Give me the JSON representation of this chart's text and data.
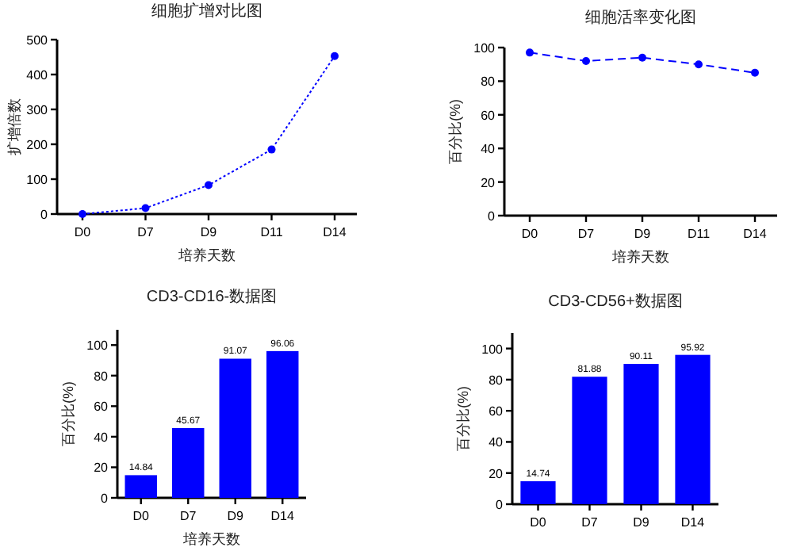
{
  "chart_data": [
    {
      "type": "line",
      "title": "细胞扩增对比图",
      "xlabel": "培养天数",
      "ylabel": "扩增倍数",
      "categories": [
        "D0",
        "D7",
        "D9",
        "D11",
        "D14"
      ],
      "series": [
        {
          "color": "#0000ff",
          "values": [
            0,
            17,
            83,
            185,
            453
          ]
        }
      ],
      "ylim": [
        0,
        500
      ],
      "yticks": [
        0,
        100,
        200,
        300,
        400,
        500
      ],
      "marker": "circle",
      "line_style": "dotted",
      "grid": false
    },
    {
      "type": "line",
      "title": "细胞活率变化图",
      "xlabel": "培养天数",
      "ylabel": "百分比(%)",
      "categories": [
        "D0",
        "D7",
        "D9",
        "D11",
        "D14"
      ],
      "series": [
        {
          "color": "#0000ff",
          "values": [
            97,
            92,
            94,
            90,
            85
          ]
        }
      ],
      "ylim": [
        0,
        100
      ],
      "yticks": [
        0,
        20,
        40,
        60,
        80,
        100
      ],
      "marker": "circle",
      "line_style": "dashed",
      "grid": false
    },
    {
      "type": "bar",
      "title": "CD3-CD16-数据图",
      "xlabel": "培养天数",
      "ylabel": "百分比(%)",
      "categories": [
        "D0",
        "D7",
        "D9",
        "D14"
      ],
      "series": [
        {
          "color": "#0000ff",
          "values": [
            14.84,
            45.67,
            91.07,
            96.06
          ]
        }
      ],
      "data_labels": true,
      "ylim": [
        0,
        110
      ],
      "yticks": [
        0,
        20,
        40,
        60,
        80,
        100
      ],
      "grid": false
    },
    {
      "type": "bar",
      "title": "CD3-CD56+数据图",
      "ylabel": "百分比(%)",
      "categories": [
        "D0",
        "D7",
        "D9",
        "D14"
      ],
      "series": [
        {
          "color": "#0000ff",
          "values": [
            14.74,
            81.88,
            90.11,
            95.92
          ]
        }
      ],
      "data_labels": true,
      "ylim": [
        0,
        110
      ],
      "yticks": [
        0,
        20,
        40,
        60,
        80,
        100
      ],
      "grid": false
    }
  ]
}
